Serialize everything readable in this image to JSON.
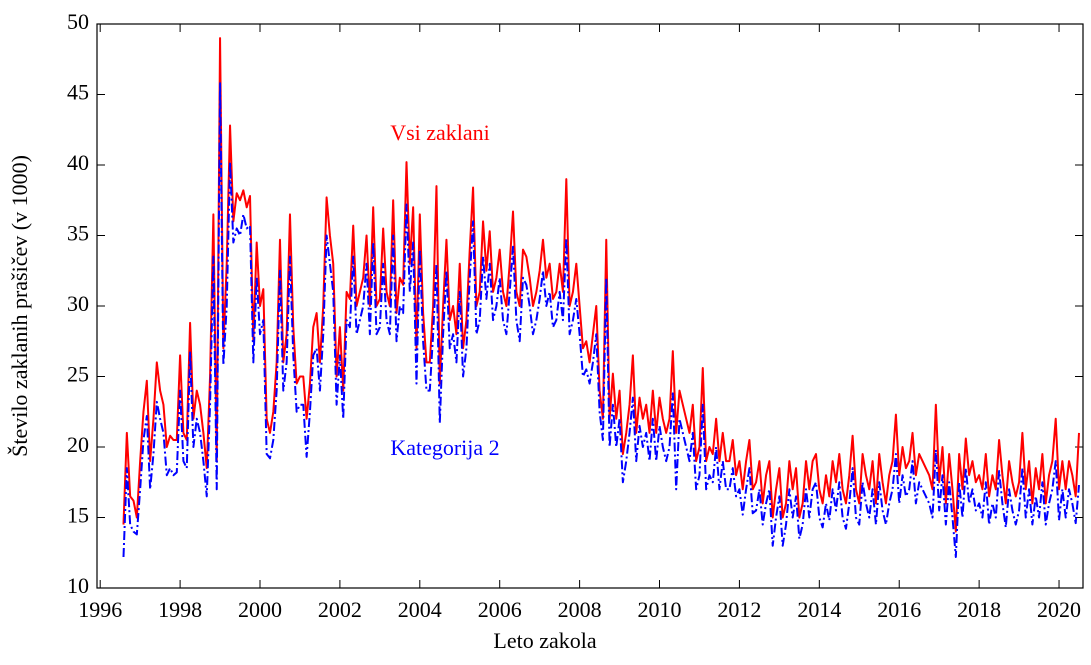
{
  "chart_data": {
    "type": "line",
    "ylabel": "Število zaklanih prašičev (v 1000)",
    "xlabel": "Leto zakola",
    "xlim": [
      1995.92,
      2020.6
    ],
    "ylim": [
      10,
      50
    ],
    "xticks": [
      1996,
      1998,
      2000,
      2002,
      2004,
      2006,
      2008,
      2010,
      2012,
      2014,
      2016,
      2018,
      2020
    ],
    "yticks": [
      10,
      15,
      20,
      25,
      30,
      35,
      40,
      45,
      50
    ],
    "x": [
      1996.583,
      1996.667,
      1996.75,
      1996.833,
      1996.917,
      1997,
      1997.083,
      1997.167,
      1997.25,
      1997.333,
      1997.417,
      1997.5,
      1997.583,
      1997.667,
      1997.75,
      1997.833,
      1997.917,
      1998,
      1998.083,
      1998.167,
      1998.25,
      1998.333,
      1998.417,
      1998.5,
      1998.583,
      1998.667,
      1998.75,
      1998.833,
      1998.917,
      1999,
      1999.083,
      1999.167,
      1999.25,
      1999.333,
      1999.417,
      1999.5,
      1999.583,
      1999.667,
      1999.75,
      1999.833,
      1999.917,
      2000,
      2000.083,
      2000.167,
      2000.25,
      2000.333,
      2000.417,
      2000.5,
      2000.583,
      2000.667,
      2000.75,
      2000.833,
      2000.917,
      2001,
      2001.083,
      2001.167,
      2001.25,
      2001.333,
      2001.417,
      2001.5,
      2001.583,
      2001.667,
      2001.75,
      2001.833,
      2001.917,
      2002,
      2002.083,
      2002.167,
      2002.25,
      2002.333,
      2002.417,
      2002.5,
      2002.583,
      2002.667,
      2002.75,
      2002.833,
      2002.917,
      2003,
      2003.083,
      2003.167,
      2003.25,
      2003.333,
      2003.417,
      2003.5,
      2003.583,
      2003.667,
      2003.75,
      2003.833,
      2003.917,
      2004,
      2004.083,
      2004.167,
      2004.25,
      2004.333,
      2004.417,
      2004.5,
      2004.583,
      2004.667,
      2004.75,
      2004.833,
      2004.917,
      2005,
      2005.083,
      2005.167,
      2005.25,
      2005.333,
      2005.417,
      2005.5,
      2005.583,
      2005.667,
      2005.75,
      2005.833,
      2005.917,
      2006,
      2006.083,
      2006.167,
      2006.25,
      2006.333,
      2006.417,
      2006.5,
      2006.583,
      2006.667,
      2006.75,
      2006.833,
      2006.917,
      2007,
      2007.083,
      2007.167,
      2007.25,
      2007.333,
      2007.417,
      2007.5,
      2007.583,
      2007.667,
      2007.75,
      2007.833,
      2007.917,
      2008,
      2008.083,
      2008.167,
      2008.25,
      2008.333,
      2008.417,
      2008.5,
      2008.583,
      2008.667,
      2008.75,
      2008.833,
      2008.917,
      2009,
      2009.083,
      2009.167,
      2009.25,
      2009.333,
      2009.417,
      2009.5,
      2009.583,
      2009.667,
      2009.75,
      2009.833,
      2009.917,
      2010,
      2010.083,
      2010.167,
      2010.25,
      2010.333,
      2010.417,
      2010.5,
      2010.583,
      2010.667,
      2010.75,
      2010.833,
      2010.917,
      2011,
      2011.083,
      2011.167,
      2011.25,
      2011.333,
      2011.417,
      2011.5,
      2011.583,
      2011.667,
      2011.75,
      2011.833,
      2011.917,
      2012,
      2012.083,
      2012.167,
      2012.25,
      2012.333,
      2012.417,
      2012.5,
      2012.583,
      2012.667,
      2012.75,
      2012.833,
      2012.917,
      2013,
      2013.083,
      2013.167,
      2013.25,
      2013.333,
      2013.417,
      2013.5,
      2013.583,
      2013.667,
      2013.75,
      2013.833,
      2013.917,
      2014,
      2014.083,
      2014.167,
      2014.25,
      2014.333,
      2014.417,
      2014.5,
      2014.583,
      2014.667,
      2014.75,
      2014.833,
      2014.917,
      2015,
      2015.083,
      2015.167,
      2015.25,
      2015.333,
      2015.417,
      2015.5,
      2015.583,
      2015.667,
      2015.75,
      2015.833,
      2015.917,
      2016,
      2016.083,
      2016.167,
      2016.25,
      2016.333,
      2016.417,
      2016.5,
      2016.583,
      2016.667,
      2016.75,
      2016.833,
      2016.917,
      2017,
      2017.083,
      2017.167,
      2017.25,
      2017.333,
      2017.417,
      2017.5,
      2017.583,
      2017.667,
      2017.75,
      2017.833,
      2017.917,
      2018,
      2018.083,
      2018.167,
      2018.25,
      2018.333,
      2018.417,
      2018.5,
      2018.583,
      2018.667,
      2018.75,
      2018.833,
      2018.917,
      2019,
      2019.083,
      2019.167,
      2019.25,
      2019.333,
      2019.417,
      2019.5,
      2019.583,
      2019.667,
      2019.75,
      2019.833,
      2019.917,
      2020,
      2020.083,
      2020.167,
      2020.25,
      2020.333,
      2020.417,
      2020.5
    ],
    "series": [
      {
        "name": "Vsi zaklani",
        "color": "#ff0000",
        "dash": "solid",
        "values": [
          14.5,
          21,
          16.5,
          16.2,
          15,
          19,
          22.5,
          24.7,
          19,
          22,
          26,
          24,
          23,
          20,
          20.8,
          20.5,
          20.5,
          26.5,
          21,
          20.5,
          28.8,
          22,
          24,
          23,
          21,
          18.5,
          25,
          36.5,
          19,
          49,
          27,
          33,
          42.8,
          36,
          38,
          37.5,
          38.2,
          37,
          37.8,
          27.5,
          34.5,
          30,
          31.2,
          22,
          21,
          22.5,
          26,
          34.7,
          26,
          28,
          36.5,
          28.5,
          24.5,
          25,
          25,
          22,
          24.5,
          28.5,
          29.5,
          26,
          30,
          37.7,
          35,
          33,
          25,
          28.5,
          24,
          31,
          30.5,
          35.7,
          30,
          31,
          32,
          35,
          30,
          37,
          30,
          30.5,
          35.5,
          31,
          30,
          37.5,
          29.5,
          32,
          31.5,
          40.2,
          33,
          37,
          27,
          36.5,
          29.5,
          26,
          26,
          30,
          38.5,
          24.5,
          30,
          34.7,
          29,
          30,
          28,
          33,
          27,
          29,
          34,
          38.4,
          30,
          31,
          36,
          32.5,
          35.3,
          31,
          32,
          34,
          31,
          30,
          33,
          36.7,
          31,
          30,
          34,
          33.5,
          32,
          30,
          31,
          32.5,
          34.7,
          32,
          33,
          30.5,
          31,
          33,
          31,
          39,
          30,
          31,
          33,
          30,
          27,
          27.5,
          26,
          28,
          30,
          24,
          22,
          34.7,
          22,
          25.2,
          22,
          24,
          19.5,
          21,
          23,
          26.5,
          21,
          23.5,
          22,
          23,
          21,
          24,
          21,
          23.5,
          22,
          21,
          22,
          26.8,
          21,
          24,
          23,
          22,
          21,
          23,
          19,
          20,
          25.6,
          19,
          20,
          19.5,
          22,
          19,
          21,
          19,
          19,
          20.5,
          18,
          19,
          17,
          19,
          20.5,
          17,
          17.5,
          19,
          16,
          18,
          19,
          15,
          17,
          18.5,
          15,
          16,
          19,
          17,
          18.5,
          15,
          16,
          19,
          17,
          19,
          19.5,
          17,
          16,
          18,
          16.5,
          19,
          17.5,
          19.5,
          17,
          16,
          18,
          20.8,
          17,
          16,
          19.5,
          18,
          17,
          19,
          16,
          19.5,
          17.5,
          16,
          18,
          19,
          22.3,
          18,
          20,
          18.5,
          19,
          21,
          18,
          19.5,
          19,
          18.5,
          18,
          17,
          23,
          17.5,
          20,
          16,
          19.5,
          17,
          14,
          19.5,
          17,
          20.6,
          18,
          19,
          17.5,
          18,
          17,
          19.5,
          16.5,
          18,
          17,
          20.5,
          18,
          16,
          19,
          17.5,
          16.5,
          17.5,
          21,
          17,
          19,
          16,
          18.5,
          17,
          19.5,
          16,
          18,
          19,
          22,
          17,
          19,
          17,
          19,
          18,
          16.5,
          21
        ]
      },
      {
        "name": "Kategorija 2",
        "color": "#0000ff",
        "dash": "dashdot",
        "values": [
          12.2,
          18.5,
          14.5,
          14,
          13.8,
          17,
          20.5,
          22.2,
          17,
          19.5,
          23.2,
          22,
          21,
          18,
          18.5,
          18,
          18.2,
          24,
          19,
          18.5,
          26.7,
          20,
          22,
          21,
          19,
          16.5,
          23,
          33.5,
          17,
          45.8,
          25.8,
          30,
          40.2,
          34.5,
          35.5,
          35,
          36.5,
          35.5,
          35.7,
          26,
          32,
          28,
          29,
          19.5,
          19.2,
          20.5,
          24,
          32.5,
          24,
          26,
          33.5,
          26.5,
          22.5,
          23,
          23,
          19.3,
          22.5,
          26.5,
          27,
          24,
          28,
          35,
          33,
          31,
          23,
          26.5,
          22,
          29,
          28.5,
          33.5,
          28,
          29,
          30,
          33,
          28,
          34.5,
          28,
          28.5,
          33,
          29,
          28,
          35,
          27.5,
          30,
          29.5,
          37.2,
          31,
          34.5,
          24.5,
          34,
          27.5,
          24,
          24,
          28,
          33,
          21.7,
          28,
          32.5,
          27,
          28,
          26,
          31,
          25,
          27,
          32,
          36,
          28,
          29,
          33.5,
          30.5,
          33,
          29,
          30,
          32,
          29,
          28,
          31,
          34.2,
          29,
          27.5,
          32,
          31.5,
          30,
          28,
          29,
          30.5,
          32.5,
          30,
          31,
          28.5,
          29,
          31,
          29,
          34.8,
          28,
          29,
          30.5,
          28,
          25,
          25.5,
          24.5,
          26,
          28,
          22.5,
          20.5,
          32,
          20,
          23,
          20,
          22,
          17.5,
          19,
          21,
          23.5,
          19,
          21.5,
          20,
          21,
          19,
          22,
          19,
          21.5,
          20,
          19,
          20,
          23.8,
          17,
          22,
          21,
          20,
          19,
          21,
          17,
          18,
          23,
          17,
          18,
          17.5,
          20,
          17,
          19,
          17,
          17,
          18.5,
          16.5,
          17,
          15.2,
          17,
          18.5,
          15.3,
          15.5,
          17,
          14.5,
          16,
          17,
          13,
          15,
          16.5,
          13,
          14.5,
          17,
          15,
          16.5,
          13.5,
          14.5,
          17,
          15,
          17,
          17.5,
          15,
          14.3,
          16,
          14.8,
          17,
          15.5,
          17.5,
          15,
          14.2,
          16,
          18.5,
          15,
          14.5,
          17.5,
          16,
          15,
          17,
          14.5,
          17.5,
          15.5,
          14.5,
          16,
          17,
          19.5,
          16,
          18,
          16.5,
          17,
          19,
          16,
          17.5,
          17,
          16.5,
          16,
          15,
          19.8,
          15.5,
          18,
          14.5,
          17.5,
          15,
          12.2,
          17.5,
          15,
          18.5,
          16,
          17,
          15.5,
          16,
          15,
          17.5,
          14.5,
          16,
          15,
          18.3,
          16,
          14.3,
          17,
          15.5,
          14.5,
          15.5,
          18.5,
          15,
          17,
          14.5,
          16.5,
          15,
          17.5,
          14.5,
          16,
          17,
          19,
          14.8,
          17,
          15,
          17,
          16,
          14.6,
          17.3
        ]
      }
    ]
  }
}
